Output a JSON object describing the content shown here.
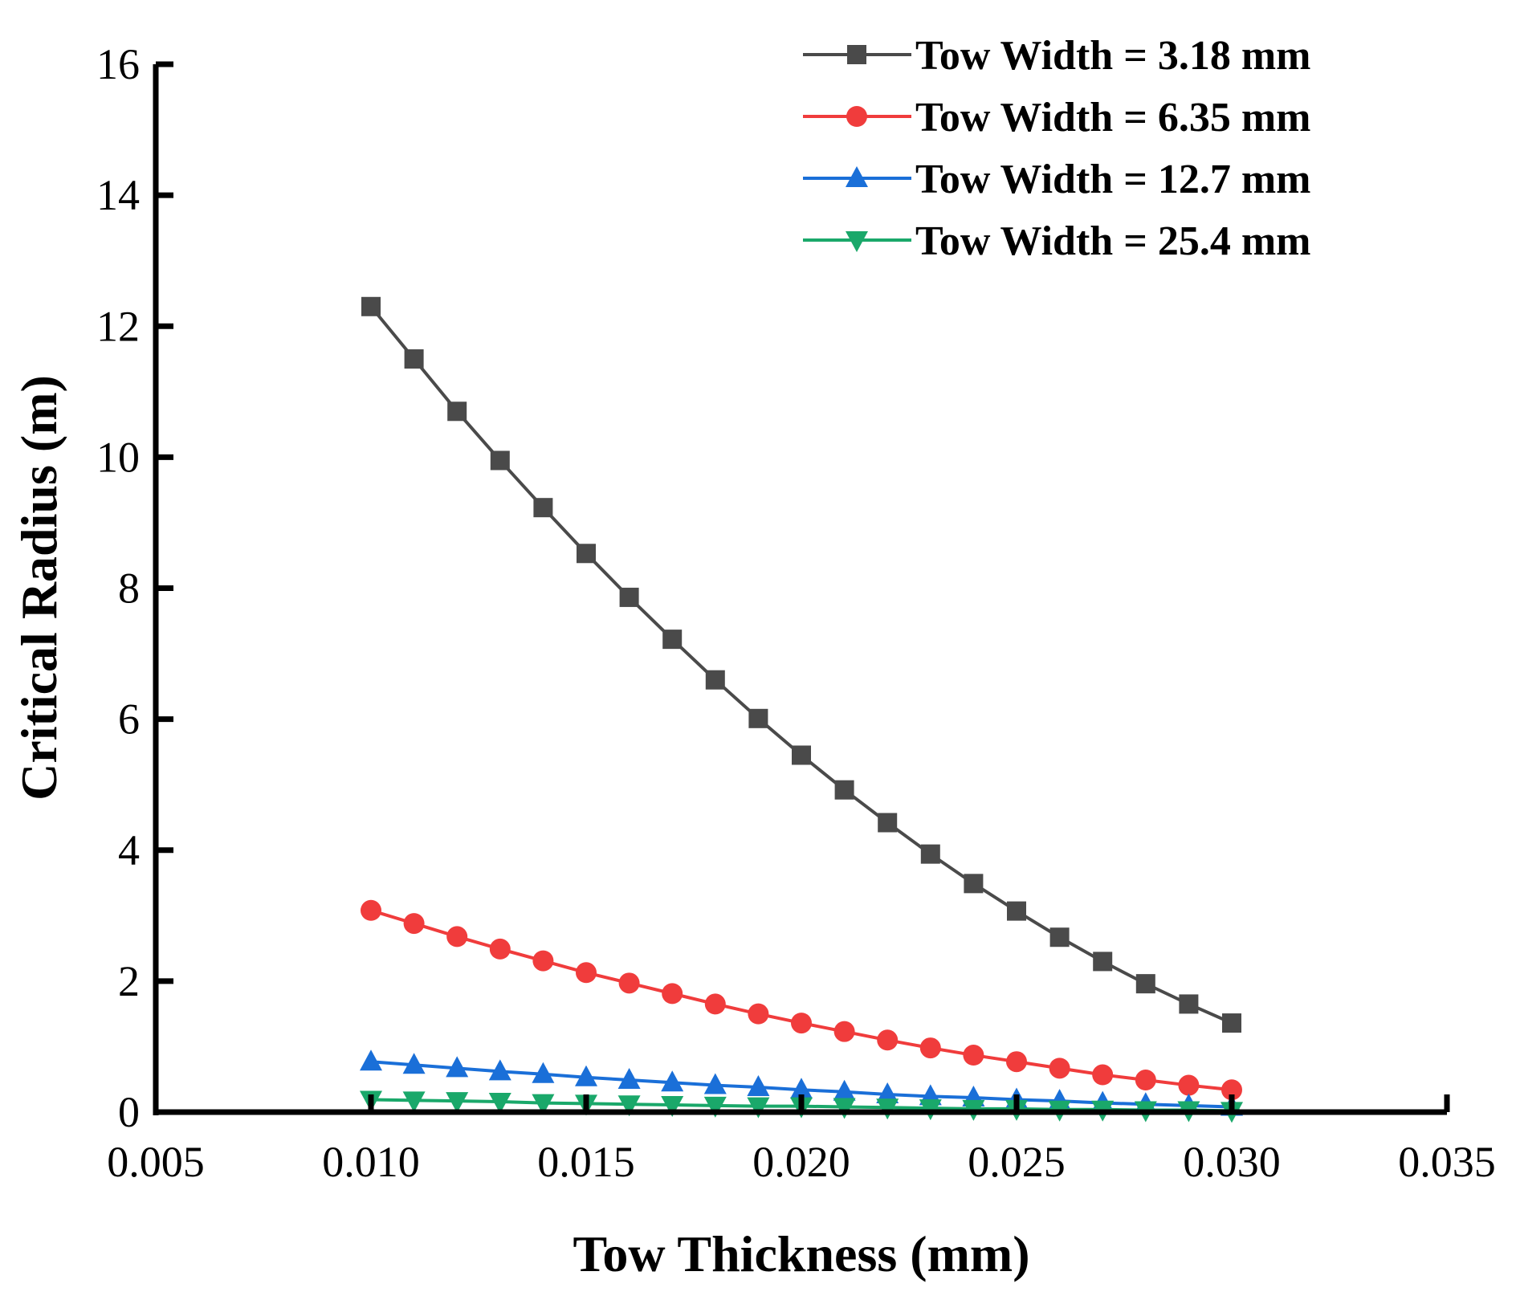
{
  "chart_data": {
    "type": "line",
    "title": "",
    "xlabel": "Tow Thickness (mm)",
    "ylabel": "Critical Radius (m)",
    "xlim": [
      0.005,
      0.035
    ],
    "ylim": [
      0,
      16
    ],
    "x_ticks": [
      0.005,
      0.01,
      0.015,
      0.02,
      0.025,
      0.03,
      0.035
    ],
    "x_tick_labels": [
      "0.005",
      "0.010",
      "0.015",
      "0.020",
      "0.025",
      "0.030",
      "0.035"
    ],
    "y_ticks": [
      0,
      2,
      4,
      6,
      8,
      10,
      12,
      14,
      16
    ],
    "y_tick_labels": [
      "0",
      "2",
      "4",
      "6",
      "8",
      "10",
      "12",
      "14",
      "16"
    ],
    "grid": false,
    "legend_position": "top-right",
    "x": [
      0.01,
      0.011,
      0.012,
      0.013,
      0.014,
      0.015,
      0.016,
      0.017,
      0.018,
      0.019,
      0.02,
      0.021,
      0.022,
      0.023,
      0.024,
      0.025,
      0.026,
      0.027,
      0.028,
      0.029,
      0.03
    ],
    "series": [
      {
        "name": "Tow Width = 3.18 mm",
        "color": "#4a4a4a",
        "marker": "square",
        "values": [
          12.3,
          11.5,
          10.7,
          9.95,
          9.23,
          8.53,
          7.86,
          7.22,
          6.6,
          6.01,
          5.45,
          4.92,
          4.42,
          3.94,
          3.49,
          3.07,
          2.67,
          2.3,
          1.96,
          1.65,
          1.36
        ]
      },
      {
        "name": "Tow Width = 6.35 mm",
        "color": "#f03c3c",
        "marker": "circle",
        "values": [
          3.08,
          2.88,
          2.68,
          2.49,
          2.31,
          2.13,
          1.97,
          1.81,
          1.65,
          1.5,
          1.36,
          1.23,
          1.1,
          0.98,
          0.87,
          0.77,
          0.67,
          0.57,
          0.49,
          0.41,
          0.34
        ]
      },
      {
        "name": "Tow Width = 12.7 mm",
        "color": "#1a6fd8",
        "marker": "triangle-up",
        "values": [
          0.77,
          0.72,
          0.67,
          0.62,
          0.58,
          0.53,
          0.49,
          0.45,
          0.41,
          0.38,
          0.34,
          0.31,
          0.27,
          0.24,
          0.22,
          0.19,
          0.17,
          0.14,
          0.12,
          0.1,
          0.08
        ]
      },
      {
        "name": "Tow Width = 25.4 mm",
        "color": "#1aa86a",
        "marker": "triangle-down",
        "values": [
          0.19,
          0.18,
          0.17,
          0.16,
          0.14,
          0.13,
          0.12,
          0.11,
          0.1,
          0.09,
          0.09,
          0.08,
          0.07,
          0.06,
          0.05,
          0.05,
          0.04,
          0.04,
          0.03,
          0.03,
          0.02
        ]
      }
    ]
  }
}
